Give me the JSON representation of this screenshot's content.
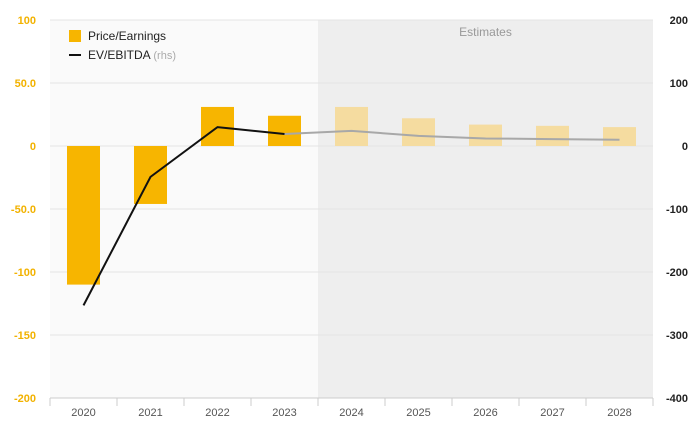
{
  "chart_data": {
    "type": "bar",
    "categories": [
      "2020",
      "2021",
      "2022",
      "2023",
      "2024",
      "2025",
      "2026",
      "2027",
      "2028"
    ],
    "estimate_start_index": 4,
    "estimates_label": "Estimates",
    "series": [
      {
        "name": "Price/Earnings",
        "type": "bar",
        "axis": "left",
        "values": [
          -110,
          -46,
          31,
          24,
          31,
          22,
          17,
          16,
          15
        ]
      },
      {
        "name": "EV/EBITDA",
        "name_suffix": "(rhs)",
        "type": "line",
        "axis": "right",
        "values": [
          -253,
          -49,
          30,
          19,
          24,
          16,
          12,
          11,
          10
        ]
      }
    ],
    "y_left": {
      "range": [
        -200,
        100
      ],
      "ticks": [
        100,
        50,
        0,
        -50,
        -100,
        -150,
        -200
      ],
      "tick_labels": [
        "100",
        "50.0",
        "0",
        "-50.0",
        "-100",
        "-150",
        "-200"
      ]
    },
    "y_right": {
      "range": [
        -400,
        200
      ],
      "ticks": [
        200,
        100,
        0,
        -100,
        -200,
        -300,
        -400
      ],
      "tick_labels": [
        "200",
        "100",
        "0",
        "-100",
        "-200",
        "-300",
        "-400"
      ]
    },
    "grid": true,
    "legend_position": "top-left",
    "colors": {
      "bar": "#f7b500",
      "bar_estimate": "#f5dca0",
      "line": "#111111",
      "line_estimate": "#a8a8a8",
      "estimate_bg": "#eeeeee",
      "plot_bg": "#fafafa",
      "left_axis_text": "#f2b200",
      "right_axis_text": "#222222"
    }
  }
}
